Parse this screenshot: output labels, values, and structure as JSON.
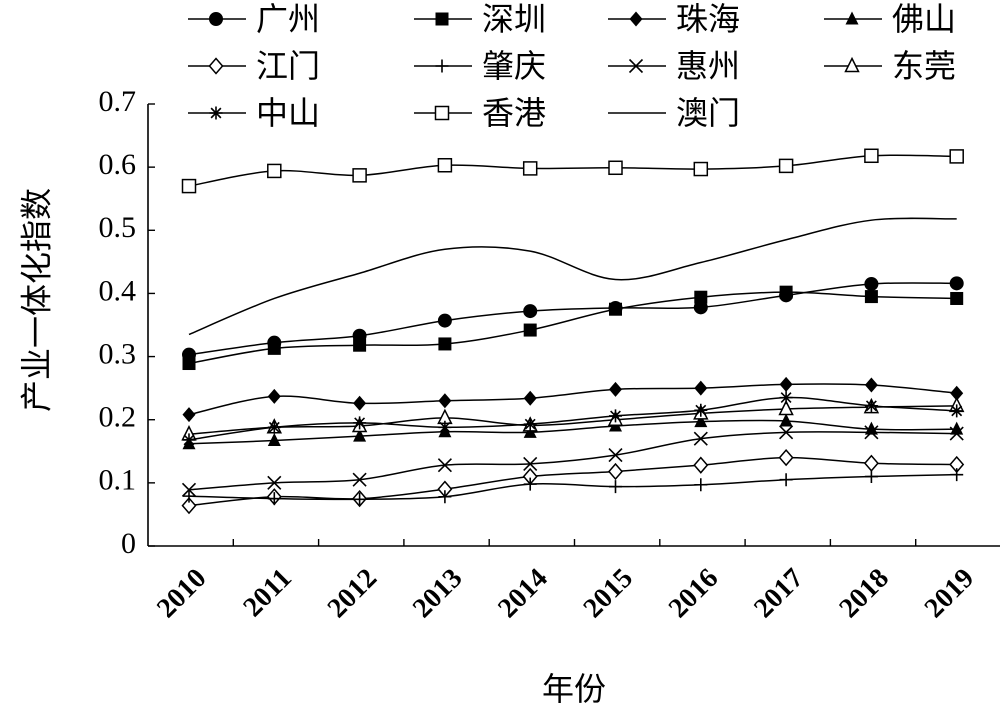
{
  "chart_data": {
    "type": "line",
    "title": "",
    "xlabel": "年份",
    "ylabel": "产业一体化指数",
    "categories": [
      "2010",
      "2011",
      "2012",
      "2013",
      "2014",
      "2015",
      "2016",
      "2017",
      "2018",
      "2019"
    ],
    "ylim": [
      0,
      0.7
    ],
    "yticks": [
      {
        "value": 0,
        "label": "0"
      },
      {
        "value": 0.1,
        "label": "0.1"
      },
      {
        "value": 0.2,
        "label": "0.2"
      },
      {
        "value": 0.3,
        "label": "0.3"
      },
      {
        "value": 0.4,
        "label": "0.4"
      },
      {
        "value": 0.5,
        "label": "0.5"
      },
      {
        "value": 0.6,
        "label": "0.6"
      },
      {
        "value": 0.7,
        "label": "0.7"
      }
    ],
    "grid": false,
    "legend_position": "top",
    "series": [
      {
        "name": "广州",
        "marker": "circle-filled",
        "values": [
          0.303,
          0.322,
          0.333,
          0.357,
          0.372,
          0.377,
          0.378,
          0.397,
          0.415,
          0.416
        ]
      },
      {
        "name": "深圳",
        "marker": "square-filled",
        "values": [
          0.289,
          0.313,
          0.318,
          0.32,
          0.342,
          0.375,
          0.394,
          0.402,
          0.395,
          0.392
        ]
      },
      {
        "name": "珠海",
        "marker": "diamond-filled",
        "values": [
          0.208,
          0.237,
          0.226,
          0.23,
          0.234,
          0.248,
          0.25,
          0.256,
          0.255,
          0.242
        ]
      },
      {
        "name": "佛山",
        "marker": "triangle-filled",
        "values": [
          0.162,
          0.167,
          0.174,
          0.181,
          0.18,
          0.19,
          0.197,
          0.198,
          0.185,
          0.185
        ]
      },
      {
        "name": "江门",
        "marker": "diamond-open",
        "values": [
          0.064,
          0.078,
          0.075,
          0.09,
          0.11,
          0.118,
          0.128,
          0.14,
          0.131,
          0.129
        ]
      },
      {
        "name": "肇庆",
        "marker": "plus",
        "values": [
          0.079,
          0.075,
          0.074,
          0.078,
          0.098,
          0.094,
          0.097,
          0.105,
          0.11,
          0.113
        ]
      },
      {
        "name": "惠州",
        "marker": "x",
        "values": [
          0.089,
          0.1,
          0.105,
          0.128,
          0.13,
          0.144,
          0.17,
          0.18,
          0.18,
          0.178
        ]
      },
      {
        "name": "东莞",
        "marker": "triangle-open",
        "values": [
          0.177,
          0.188,
          0.19,
          0.203,
          0.191,
          0.2,
          0.21,
          0.217,
          0.22,
          0.222
        ]
      },
      {
        "name": "中山",
        "marker": "asterisk",
        "values": [
          0.168,
          0.188,
          0.195,
          0.188,
          0.193,
          0.206,
          0.215,
          0.235,
          0.222,
          0.214
        ]
      },
      {
        "name": "香港",
        "marker": "square-open",
        "values": [
          0.57,
          0.594,
          0.587,
          0.603,
          0.598,
          0.599,
          0.597,
          0.602,
          0.618,
          0.617
        ]
      },
      {
        "name": "澳门",
        "marker": "none",
        "values": [
          0.335,
          0.392,
          0.432,
          0.47,
          0.467,
          0.422,
          0.449,
          0.485,
          0.516,
          0.518
        ]
      }
    ]
  }
}
